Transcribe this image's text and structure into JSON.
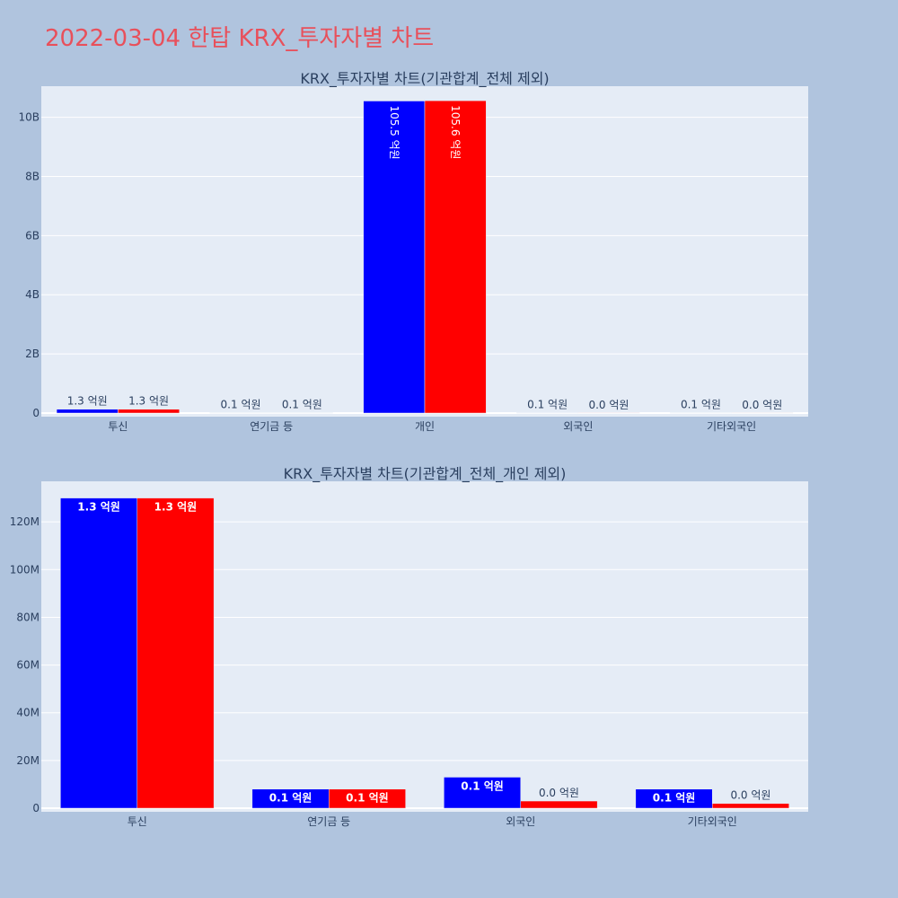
{
  "page": {
    "title": "2022-03-04 한탑 KRX_투자자별 차트"
  },
  "colors": {
    "series1": "#0000ff",
    "series2": "#ff0000",
    "plot_bg": "#e5ecf6",
    "page_bg": "#b0c4de",
    "title": "#e8505b",
    "text": "#2a3f5f"
  },
  "chart_data": [
    {
      "type": "bar",
      "title": "KRX_투자자별 차트(기관합계_전체 제외)",
      "categories": [
        "투신",
        "연기금 등",
        "개인",
        "외국인",
        "기타외국인"
      ],
      "series": [
        {
          "values": [
            130000000,
            8000000,
            10550000000,
            13000000,
            8000000
          ],
          "labels": [
            "1.3 억원",
            "0.1 억원",
            "105.5 억원",
            "0.1 억원",
            "0.1 억원"
          ]
        },
        {
          "values": [
            130000000,
            8000000,
            10560000000,
            3000000,
            2000000
          ],
          "labels": [
            "1.3 억원",
            "0.1 억원",
            "105.6 억원",
            "0.0 억원",
            "0.0 억원"
          ]
        }
      ],
      "yticks": [
        0,
        2000000000,
        4000000000,
        6000000000,
        8000000000,
        10000000000
      ],
      "ytick_labels": [
        "0",
        "2B",
        "4B",
        "6B",
        "8B",
        "10B"
      ],
      "ylim": [
        0,
        11050000000
      ],
      "grid": true,
      "legend": "none"
    },
    {
      "type": "bar",
      "title": "KRX_투자자별 차트(기관합계_전체_개인 제외)",
      "categories": [
        "투신",
        "연기금 등",
        "외국인",
        "기타외국인"
      ],
      "series": [
        {
          "values": [
            130000000,
            8000000,
            13000000,
            8000000
          ],
          "labels": [
            "1.3 억원",
            "0.1 억원",
            "0.1 억원",
            "0.1 억원"
          ]
        },
        {
          "values": [
            130000000,
            8000000,
            3000000,
            2000000
          ],
          "labels": [
            "1.3 억원",
            "0.1 억원",
            "0.0 억원",
            "0.0 억원"
          ]
        }
      ],
      "yticks": [
        0,
        20000000,
        40000000,
        60000000,
        80000000,
        100000000,
        120000000
      ],
      "ytick_labels": [
        "0",
        "20M",
        "40M",
        "60M",
        "80M",
        "100M",
        "120M"
      ],
      "ylim": [
        0,
        137000000
      ],
      "grid": true,
      "legend": "none"
    }
  ]
}
